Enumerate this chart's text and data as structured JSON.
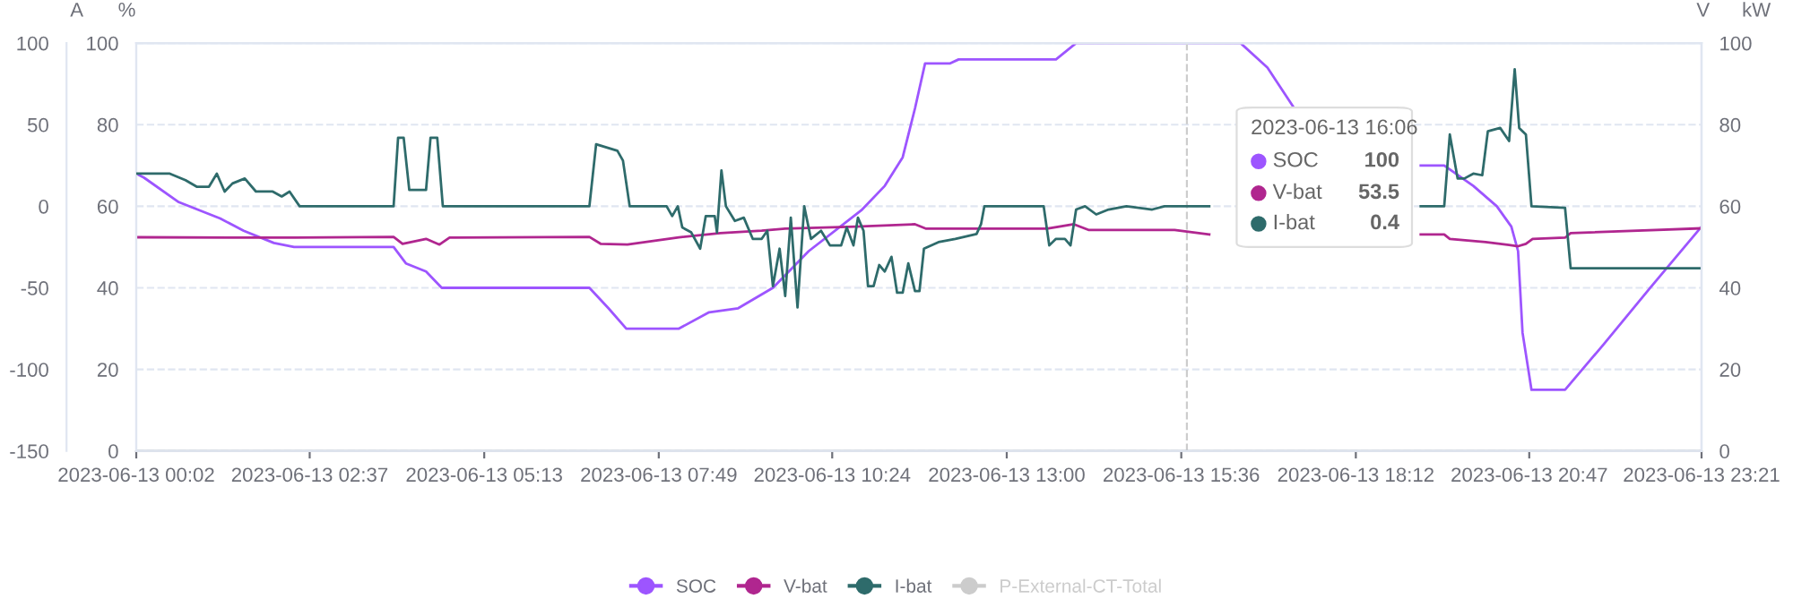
{
  "chart_data": {
    "type": "line",
    "ylabel": "%",
    "y2label": "V",
    "y3label": "A",
    "xlim": [
      "2023-06-13T00:02",
      "2023-06-13T23:21"
    ],
    "xticks": [
      {
        "value": "2023-06-13T00:02",
        "label": "2023-06-13 00:02"
      },
      {
        "value": "2023-06-13T02:37",
        "label": "2023-06-13 02:37"
      },
      {
        "value": "2023-06-13T05:13",
        "label": "2023-06-13 05:13"
      },
      {
        "value": "2023-06-13T07:49",
        "label": "2023-06-13 07:49"
      },
      {
        "value": "2023-06-13T10:24",
        "label": "2023-06-13 10:24"
      },
      {
        "value": "2023-06-13T13:00",
        "label": "2023-06-13 13:00"
      },
      {
        "value": "2023-06-13T15:36",
        "label": "2023-06-13 15:36"
      },
      {
        "value": "2023-06-13T18:12",
        "label": "2023-06-13 18:12"
      },
      {
        "value": "2023-06-13T20:47",
        "label": "2023-06-13 20:47"
      },
      {
        "value": "2023-06-13T23:21",
        "label": "2023-06-13 23:21"
      }
    ],
    "ylim": [
      0,
      100
    ],
    "yticks": [
      0,
      20,
      40,
      60,
      80,
      100
    ],
    "y2lim": [
      0,
      100
    ],
    "y2ticks": [
      0,
      20,
      40,
      60,
      80,
      100
    ],
    "y3lim": [
      -150,
      100
    ],
    "y3ticks": [
      -150,
      -100,
      -50,
      0,
      50,
      100
    ],
    "grid": "y",
    "legend": "bottom",
    "marker": "none",
    "line_style": "solid",
    "series": [
      {
        "name": "SOC",
        "color": "#9d55ff",
        "x": [
          "2023-06-13T00:02",
          "2023-06-13T00:09",
          "2023-06-13T00:40",
          "2023-06-13T01:17",
          "2023-06-13T01:38",
          "2023-06-13T02:05",
          "2023-06-13T02:23",
          "2023-06-13T03:52",
          "2023-06-13T04:03",
          "2023-06-13T04:21",
          "2023-06-13T04:35",
          "2023-06-13T06:47",
          "2023-06-13T07:04",
          "2023-06-13T07:20",
          "2023-06-13T08:07",
          "2023-06-13T08:34",
          "2023-06-13T09:00",
          "2023-06-13T09:31",
          "2023-06-13T10:03",
          "2023-06-13T10:50",
          "2023-06-13T11:11",
          "2023-06-13T11:27",
          "2023-06-13T11:38",
          "2023-06-13T11:47",
          "2023-06-13T12:09",
          "2023-06-13T12:17",
          "2023-06-13T13:44",
          "2023-06-13T14:02",
          "2023-06-13T16:29",
          "2023-06-13T16:53",
          "2023-06-13T17:17",
          "2023-06-13T17:30",
          "2023-06-13T19:10",
          "2023-06-13T19:31",
          "2023-06-13T19:57",
          "2023-06-13T20:18",
          "2023-06-13T20:31",
          "2023-06-13T20:37",
          "2023-06-13T20:41",
          "2023-06-13T20:49",
          "2023-06-13T21:19",
          "2023-06-13T21:53",
          "2023-06-13T22:35",
          "2023-06-13T23:21"
        ],
        "values": [
          68,
          67,
          61,
          57,
          54,
          51,
          50,
          50,
          46,
          44,
          40,
          40,
          35,
          30,
          30,
          34,
          35,
          40,
          49,
          59,
          65,
          72,
          84,
          95,
          95,
          96,
          96,
          100,
          100,
          94,
          84,
          null,
          70,
          70,
          65,
          60,
          55,
          49,
          29,
          15,
          15,
          26,
          40,
          55
        ]
      },
      {
        "name": "V-bat",
        "color": "#b0268f",
        "axis": "y2",
        "x": [
          "2023-06-13T00:02",
          "2023-06-13T02:24",
          "2023-06-13T03:52",
          "2023-06-13T04:00",
          "2023-06-13T04:21",
          "2023-06-13T04:33",
          "2023-06-13T04:42",
          "2023-06-13T06:47",
          "2023-06-13T06:57",
          "2023-06-13T07:21",
          "2023-06-13T08:07",
          "2023-06-13T08:44",
          "2023-06-13T09:21",
          "2023-06-13T09:42",
          "2023-06-13T10:45",
          "2023-06-13T11:38",
          "2023-06-13T11:48",
          "2023-06-13T13:36",
          "2023-06-13T14:00",
          "2023-06-13T14:13",
          "2023-06-13T15:30",
          "2023-06-13T16:01",
          "2023-06-13T16:30",
          "2023-06-13T19:10",
          "2023-06-13T19:31",
          "2023-06-13T19:36",
          "2023-06-13T20:08",
          "2023-06-13T20:29",
          "2023-06-13T20:37",
          "2023-06-13T20:44",
          "2023-06-13T20:50",
          "2023-06-13T21:19",
          "2023-06-13T21:24",
          "2023-06-13T23:21"
        ],
        "values": [
          52.4,
          52.3,
          52.5,
          50.8,
          52,
          50.6,
          52.3,
          52.5,
          50.8,
          50.6,
          52.4,
          53.4,
          54,
          54.5,
          55,
          55.6,
          54.5,
          54.5,
          55.6,
          54.2,
          54.2,
          53.1,
          null,
          53.1,
          53.1,
          52,
          51.2,
          50.5,
          50.2,
          50.8,
          52,
          52.3,
          53.4,
          54.6
        ]
      },
      {
        "name": "I-bat",
        "color": "#2e6b6b",
        "axis": "y3",
        "x": [
          "2023-06-13T00:02",
          "2023-06-13T00:32",
          "2023-06-13T00:46",
          "2023-06-13T00:56",
          "2023-06-13T01:07",
          "2023-06-13T01:14",
          "2023-06-13T01:21",
          "2023-06-13T01:28",
          "2023-06-13T01:39",
          "2023-06-13T01:49",
          "2023-06-13T02:04",
          "2023-06-13T02:12",
          "2023-06-13T02:19",
          "2023-06-13T02:28",
          "2023-06-13T03:52",
          "2023-06-13T03:56",
          "2023-06-13T04:01",
          "2023-06-13T04:06",
          "2023-06-13T04:21",
          "2023-06-13T04:25",
          "2023-06-13T04:31",
          "2023-06-13T04:36",
          "2023-06-13T06:47",
          "2023-06-13T06:53",
          "2023-06-13T07:12",
          "2023-06-13T07:17",
          "2023-06-13T07:23",
          "2023-06-13T07:56",
          "2023-06-13T08:01",
          "2023-06-13T08:06",
          "2023-06-13T08:10",
          "2023-06-13T08:18",
          "2023-06-13T08:26",
          "2023-06-13T08:31",
          "2023-06-13T08:39",
          "2023-06-13T08:41",
          "2023-06-13T08:45",
          "2023-06-13T08:49",
          "2023-06-13T08:57",
          "2023-06-13T09:05",
          "2023-06-13T09:13",
          "2023-06-13T09:21",
          "2023-06-13T09:26",
          "2023-06-13T09:31",
          "2023-06-13T09:37",
          "2023-06-13T09:42",
          "2023-06-13T09:47",
          "2023-06-13T09:53",
          "2023-06-13T09:59",
          "2023-06-13T10:05",
          "2023-06-13T10:14",
          "2023-06-13T10:22",
          "2023-06-13T10:32",
          "2023-06-13T10:37",
          "2023-06-13T10:43",
          "2023-06-13T10:47",
          "2023-06-13T10:52",
          "2023-06-13T10:56",
          "2023-06-13T11:01",
          "2023-06-13T11:06",
          "2023-06-13T11:11",
          "2023-06-13T11:17",
          "2023-06-13T11:22",
          "2023-06-13T11:27",
          "2023-06-13T11:32",
          "2023-06-13T11:38",
          "2023-06-13T11:42",
          "2023-06-13T11:46",
          "2023-06-13T11:59",
          "2023-06-13T12:14",
          "2023-06-13T12:33",
          "2023-06-13T12:37",
          "2023-06-13T12:40",
          "2023-06-13T13:33",
          "2023-06-13T13:38",
          "2023-06-13T13:44",
          "2023-06-13T13:52",
          "2023-06-13T13:57",
          "2023-06-13T14:02",
          "2023-06-13T14:10",
          "2023-06-13T14:20",
          "2023-06-13T14:31",
          "2023-06-13T14:47",
          "2023-06-13T15:10",
          "2023-06-13T15:21",
          "2023-06-13T16:01",
          "2023-06-13T16:30",
          "2023-06-13T19:10",
          "2023-06-13T19:31",
          "2023-06-13T19:36",
          "2023-06-13T19:43",
          "2023-06-13T19:49",
          "2023-06-13T19:57",
          "2023-06-13T20:05",
          "2023-06-13T20:10",
          "2023-06-13T20:21",
          "2023-06-13T20:29",
          "2023-06-13T20:34",
          "2023-06-13T20:38",
          "2023-06-13T20:44",
          "2023-06-13T20:49",
          "2023-06-13T21:19",
          "2023-06-13T21:24",
          "2023-06-13T23:21"
        ],
        "values": [
          20,
          20,
          16,
          12,
          12,
          20,
          9,
          14,
          17,
          9,
          9,
          6,
          9,
          0,
          0,
          42,
          42,
          10,
          10,
          42,
          42,
          0,
          0,
          38,
          34,
          28,
          0,
          0,
          -6,
          0,
          -13,
          -16,
          -26,
          -6,
          -6,
          -16,
          22,
          0,
          -9,
          -7,
          -20,
          -20,
          -15,
          -49,
          -26,
          -55,
          -7,
          -62,
          0,
          -20,
          -15,
          -24,
          -24,
          -13,
          -24,
          -7,
          -15,
          -49,
          -49,
          -36,
          -40,
          -31,
          -53,
          -53,
          -35,
          -52,
          -52,
          -26,
          -22,
          -20,
          -17,
          -11,
          0,
          0,
          -24,
          -20,
          -20,
          -24,
          -2,
          0,
          -5,
          -2,
          0,
          -2,
          0,
          0,
          null,
          0,
          0,
          44,
          17,
          17,
          20,
          19,
          46,
          48,
          40,
          84,
          48,
          44,
          0,
          -1,
          -38,
          -38
        ]
      },
      {
        "name": "P-External-CT-Total",
        "color": "#cccccc"
      }
    ],
    "ref_lines": [
      {
        "axis": "x",
        "value": "2023-06-13T15:41",
        "color": "#cccccc",
        "line_style": "dashed"
      }
    ],
    "annotations": [
      "2023-06-13 16:06",
      "SOC",
      "100",
      "V-bat",
      "53.5",
      "I-bat",
      "0.4",
      "kW"
    ]
  }
}
